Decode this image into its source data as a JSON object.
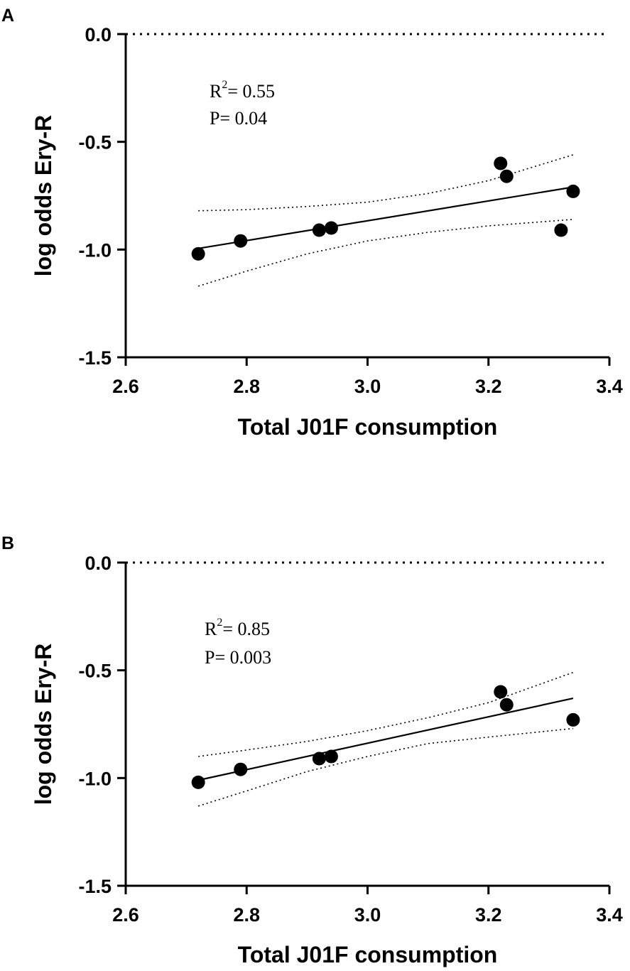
{
  "chart_data": [
    {
      "panel": "A",
      "type": "scatter",
      "xlabel": "Total J01F consumption",
      "ylabel": "log odds Ery-R",
      "xlim": [
        2.6,
        3.4
      ],
      "ylim": [
        -1.5,
        0.0
      ],
      "xticks": [
        2.6,
        2.8,
        3.0,
        3.2,
        3.4
      ],
      "xtick_labels": [
        "2.6",
        "2.8",
        "3.0",
        "3.2",
        "3.4"
      ],
      "yticks": [
        0.0,
        -0.5,
        -1.0,
        -1.5
      ],
      "ytick_labels": [
        "0.0",
        "-0.5",
        "-1.0",
        "-1.5"
      ],
      "reference_line_y": 0.0,
      "stats": {
        "r2_label": "R",
        "r2_sup": "2",
        "r2_value": "= 0.55",
        "p_text": "P= 0.04"
      },
      "points": [
        {
          "x": 2.72,
          "y": -1.02
        },
        {
          "x": 2.79,
          "y": -0.96
        },
        {
          "x": 2.92,
          "y": -0.91
        },
        {
          "x": 2.94,
          "y": -0.9
        },
        {
          "x": 3.22,
          "y": -0.6
        },
        {
          "x": 3.23,
          "y": -0.66
        },
        {
          "x": 3.32,
          "y": -0.91
        },
        {
          "x": 3.34,
          "y": -0.73
        }
      ],
      "fit_line": [
        {
          "x": 2.72,
          "y": -0.995
        },
        {
          "x": 3.34,
          "y": -0.71
        }
      ],
      "ci_upper": [
        {
          "x": 2.72,
          "y": -0.82
        },
        {
          "x": 2.8,
          "y": -0.815
        },
        {
          "x": 2.9,
          "y": -0.8
        },
        {
          "x": 3.0,
          "y": -0.78
        },
        {
          "x": 3.1,
          "y": -0.74
        },
        {
          "x": 3.2,
          "y": -0.68
        },
        {
          "x": 3.34,
          "y": -0.56
        }
      ],
      "ci_lower": [
        {
          "x": 2.72,
          "y": -1.17
        },
        {
          "x": 2.8,
          "y": -1.1
        },
        {
          "x": 2.9,
          "y": -1.02
        },
        {
          "x": 3.0,
          "y": -0.96
        },
        {
          "x": 3.1,
          "y": -0.92
        },
        {
          "x": 3.2,
          "y": -0.89
        },
        {
          "x": 3.34,
          "y": -0.86
        }
      ]
    },
    {
      "panel": "B",
      "type": "scatter",
      "xlabel": "Total J01F consumption",
      "ylabel": "log odds Ery-R",
      "xlim": [
        2.6,
        3.4
      ],
      "ylim": [
        -1.5,
        0.0
      ],
      "xticks": [
        2.6,
        2.8,
        3.0,
        3.2,
        3.4
      ],
      "xtick_labels": [
        "2.6",
        "2.8",
        "3.0",
        "3.2",
        "3.4"
      ],
      "yticks": [
        0.0,
        -0.5,
        -1.0,
        -1.5
      ],
      "ytick_labels": [
        "0.0",
        "-0.5",
        "-1.0",
        "-1.5"
      ],
      "reference_line_y": 0.0,
      "stats": {
        "r2_label": "R",
        "r2_sup": "2",
        "r2_value": "= 0.85",
        "p_text": "P= 0.003"
      },
      "points": [
        {
          "x": 2.72,
          "y": -1.02
        },
        {
          "x": 2.79,
          "y": -0.96
        },
        {
          "x": 2.92,
          "y": -0.91
        },
        {
          "x": 2.94,
          "y": -0.9
        },
        {
          "x": 3.22,
          "y": -0.6
        },
        {
          "x": 3.23,
          "y": -0.66
        },
        {
          "x": 3.34,
          "y": -0.73
        }
      ],
      "fit_line": [
        {
          "x": 2.72,
          "y": -1.01
        },
        {
          "x": 3.34,
          "y": -0.63
        }
      ],
      "ci_upper": [
        {
          "x": 2.72,
          "y": -0.9
        },
        {
          "x": 2.8,
          "y": -0.87
        },
        {
          "x": 2.9,
          "y": -0.83
        },
        {
          "x": 3.0,
          "y": -0.78
        },
        {
          "x": 3.1,
          "y": -0.72
        },
        {
          "x": 3.2,
          "y": -0.65
        },
        {
          "x": 3.34,
          "y": -0.51
        }
      ],
      "ci_lower": [
        {
          "x": 2.72,
          "y": -1.13
        },
        {
          "x": 2.8,
          "y": -1.06
        },
        {
          "x": 2.9,
          "y": -0.97
        },
        {
          "x": 3.0,
          "y": -0.9
        },
        {
          "x": 3.1,
          "y": -0.84
        },
        {
          "x": 3.2,
          "y": -0.81
        },
        {
          "x": 3.34,
          "y": -0.77
        }
      ]
    }
  ]
}
